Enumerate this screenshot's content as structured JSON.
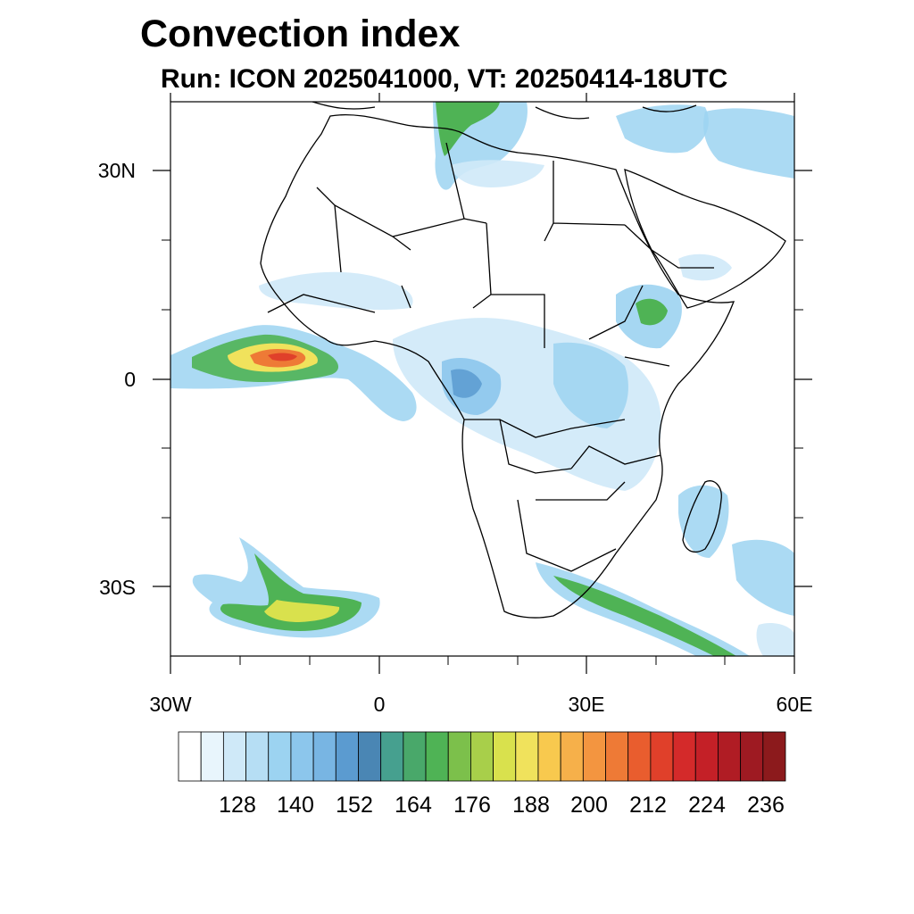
{
  "header": {
    "title": "Convection index",
    "subtitle": "Run: ICON 2025041000,  VT: 20250414-18UTC"
  },
  "axes": {
    "lat_labels": [
      "30N",
      "0",
      "30S"
    ],
    "lon_labels": [
      "30W",
      "0",
      "30E",
      "60E"
    ]
  },
  "colorbar": {
    "labels": [
      "128",
      "140",
      "152",
      "164",
      "176",
      "188",
      "200",
      "212",
      "224",
      "236"
    ],
    "colors": [
      "#ffffff",
      "#e8f5fc",
      "#cfe9f8",
      "#b6def4",
      "#9cd3f1",
      "#8cc6ec",
      "#78b5e3",
      "#5b9bd0",
      "#4a86b4",
      "#46a08f",
      "#49a86a",
      "#4fb355",
      "#7cc04b",
      "#a8cf4a",
      "#d9e14d",
      "#f0e25c",
      "#f8c94e",
      "#f6b04a",
      "#f39540",
      "#ee7a36",
      "#e95d2e",
      "#e0402a",
      "#d42a2a",
      "#c42027",
      "#b01c24",
      "#9e1a22",
      "#8c1a1c"
    ]
  }
}
